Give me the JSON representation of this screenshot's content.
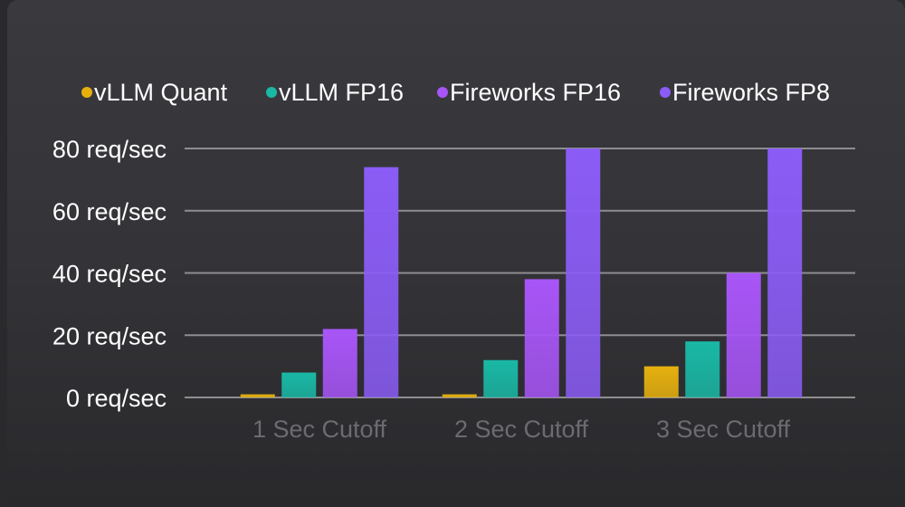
{
  "chart_data": {
    "type": "bar",
    "categories": [
      "1 Sec Cutoff",
      "2 Sec Cutoff",
      "3 Sec Cutoff"
    ],
    "series": [
      {
        "name": "vLLM Quant",
        "color": "#e6b10e",
        "values": [
          1,
          1,
          10
        ]
      },
      {
        "name": "vLLM FP16",
        "color": "#19b8a5",
        "values": [
          8,
          12,
          18
        ]
      },
      {
        "name": "Fireworks FP16",
        "color": "#a855f7",
        "values": [
          22,
          38,
          40
        ]
      },
      {
        "name": "Fireworks FP8",
        "color": "#8b5cf6",
        "values": [
          74,
          80,
          80
        ]
      }
    ],
    "ylim": [
      0,
      80
    ],
    "yticks": [
      0,
      20,
      40,
      60,
      80
    ],
    "ytick_labels": [
      "0 req/sec",
      "20 req/sec",
      "40 req/sec",
      "60 req/sec",
      "80 req/sec"
    ],
    "grid": true,
    "legend_position": "top"
  }
}
